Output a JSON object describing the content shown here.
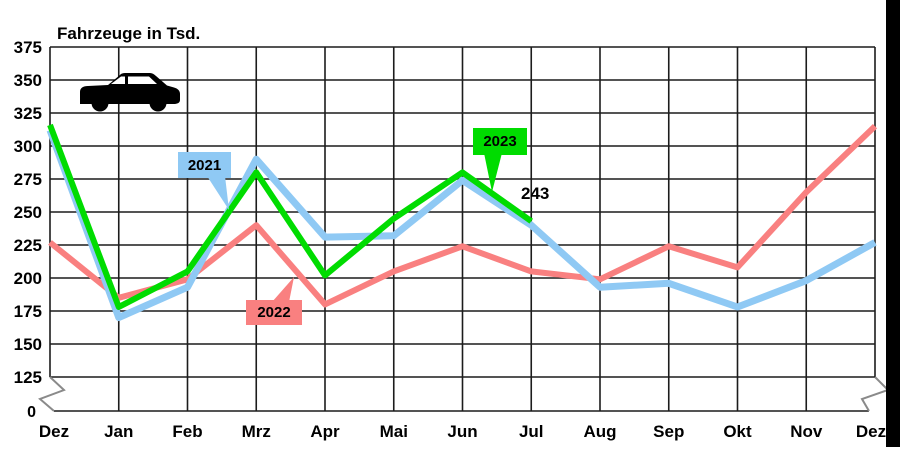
{
  "window": {
    "background": "#ffffff",
    "right_bar_color": "#000000"
  },
  "chart_data": {
    "type": "line",
    "title": "Fahrzeuge in Tsd.",
    "xlabel": "",
    "ylabel": "",
    "categories": [
      "Dez",
      "Jan",
      "Feb",
      "Mrz",
      "Apr",
      "Mai",
      "Jun",
      "Jul",
      "Aug",
      "Sep",
      "Okt",
      "Nov",
      "Dez"
    ],
    "y_tick_labels": [
      "375",
      "350",
      "325",
      "300",
      "275",
      "250",
      "225",
      "200",
      "175",
      "150",
      "125"
    ],
    "y_axis_zero_label": "0",
    "ylim": [
      125,
      375
    ],
    "axis_break": true,
    "grid": true,
    "grid_color": "#1c1c1c",
    "break_color": "#8a8a8a",
    "text_color": "#000000",
    "icon": "car-icon",
    "series": [
      {
        "name": "2021",
        "color": "#8FC9F4",
        "values": [
          312,
          170,
          193,
          290,
          231,
          232,
          274,
          240,
          193,
          196,
          178,
          198,
          227
        ]
      },
      {
        "name": "2022",
        "color": "#F98080",
        "values": [
          227,
          185,
          199,
          240,
          180,
          205,
          224,
          205,
          199,
          224,
          208,
          265,
          315
        ]
      },
      {
        "name": "2023",
        "color": "#00DC00",
        "values": [
          316,
          178,
          205,
          280,
          202,
          245,
          280,
          243,
          null,
          null,
          null,
          null,
          null
        ]
      }
    ],
    "annotation": {
      "text": "243",
      "series": "2023",
      "category": "Jul"
    },
    "callouts": [
      {
        "label": "2021"
      },
      {
        "label": "2022"
      },
      {
        "label": "2023"
      }
    ]
  }
}
